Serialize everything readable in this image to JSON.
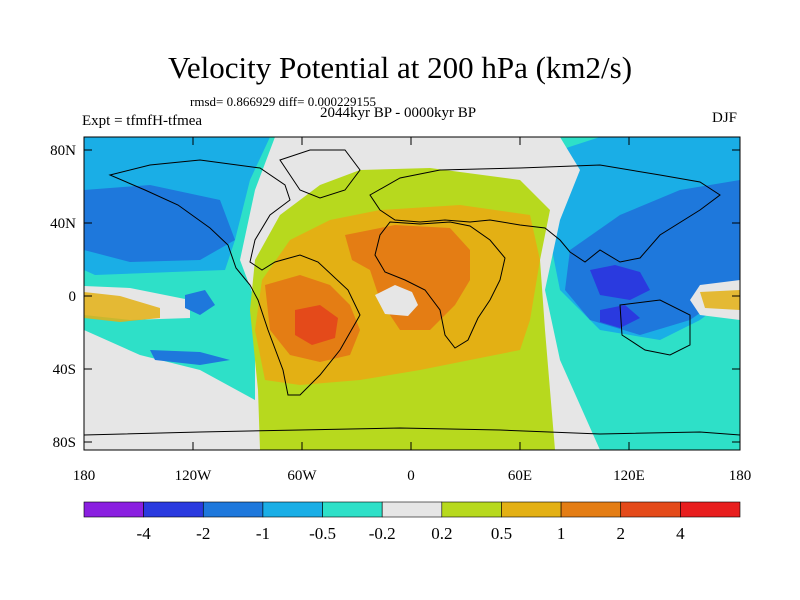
{
  "title": "Velocity Potential at 200 hPa (km2/s)",
  "stats": "rmsd= 0.866929 diff= 0.000229155",
  "experiment": "Expt = tfmfH-tfmea",
  "period": "2044kyr BP - 0000kyr BP",
  "season": "DJF",
  "map": {
    "lat_ticks": [
      "80N",
      "40N",
      "0",
      "40S",
      "80S"
    ],
    "lon_ticks": [
      "180",
      "120W",
      "60W",
      "0",
      "60E",
      "120E",
      "180"
    ]
  },
  "colorbar": {
    "colors": [
      "#8a1fe0",
      "#2a3adf",
      "#1e78dc",
      "#1aaee6",
      "#2ee0c8",
      "#e6e6e6",
      "#b7d91e",
      "#e3b014",
      "#e47d14",
      "#e44a1a",
      "#e81e1e"
    ],
    "labels": [
      "-4",
      "-2",
      "-1",
      "-0.5",
      "-0.2",
      "0.2",
      "0.5",
      "1",
      "2",
      "4"
    ]
  }
}
